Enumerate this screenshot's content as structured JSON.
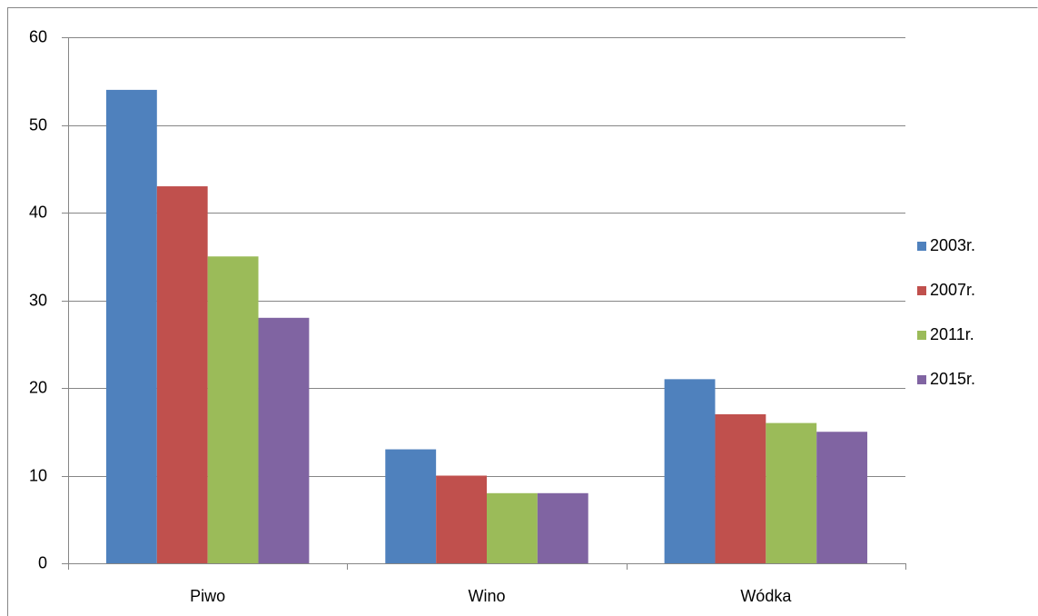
{
  "chart_data": {
    "type": "bar",
    "categories": [
      "Piwo",
      "Wino",
      "Wódka"
    ],
    "series": [
      {
        "name": "2003r.",
        "color": "#4f81bd",
        "values": [
          54,
          13,
          21
        ]
      },
      {
        "name": "2007r.",
        "color": "#c0504d",
        "values": [
          43,
          10,
          17
        ]
      },
      {
        "name": "2011r.",
        "color": "#9bbb59",
        "values": [
          35,
          8,
          16
        ]
      },
      {
        "name": "2015r.",
        "color": "#8064a2",
        "values": [
          28,
          8,
          15
        ]
      }
    ],
    "ylim": [
      0,
      60
    ],
    "yticks": [
      0,
      10,
      20,
      30,
      40,
      50,
      60
    ],
    "grid": true,
    "legend": "right"
  }
}
